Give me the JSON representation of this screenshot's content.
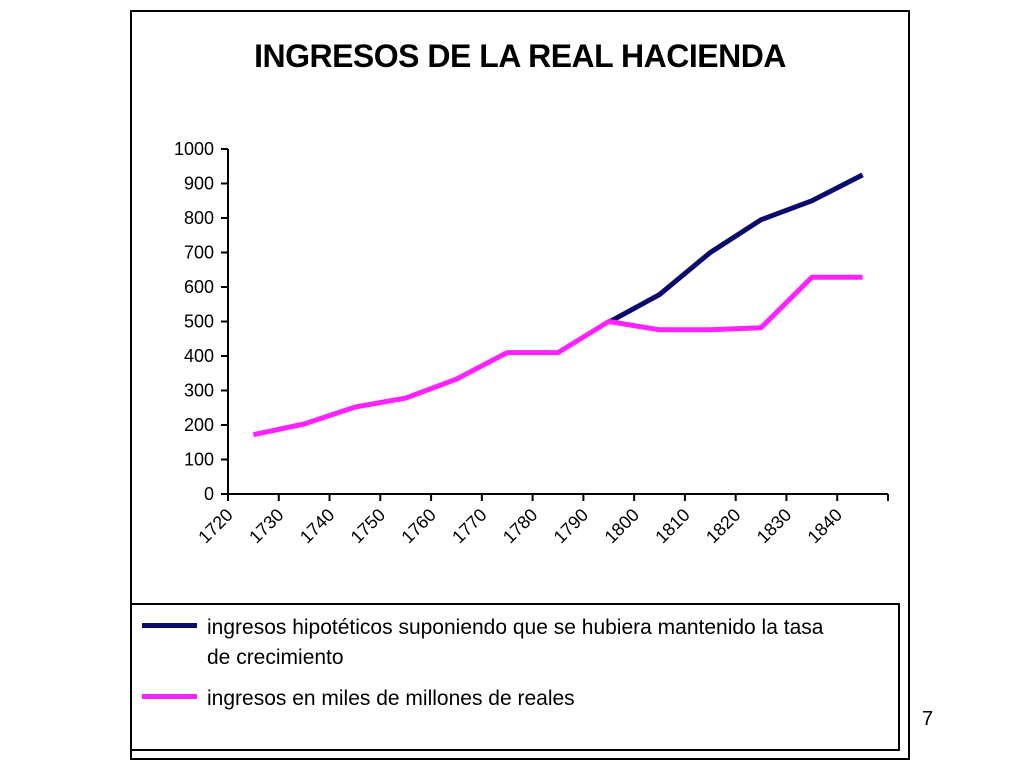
{
  "page_number": "7",
  "colors": {
    "hypothetical": "#0b0b6e",
    "actual": "#ff22ff",
    "axis": "#000000"
  },
  "chart_data": {
    "type": "line",
    "title": "INGRESOS DE LA REAL HACIENDA",
    "xlabel": "",
    "ylabel": "",
    "x_ticks": [
      "1720",
      "1730",
      "1740",
      "1750",
      "1760",
      "1770",
      "1780",
      "1790",
      "1800",
      "1810",
      "1820",
      "1830",
      "1840"
    ],
    "y_ticks": [
      "0",
      "100",
      "200",
      "300",
      "400",
      "500",
      "600",
      "700",
      "800",
      "900",
      "1000"
    ],
    "xlim": [
      1720,
      1850
    ],
    "ylim": [
      0,
      1000
    ],
    "grid": false,
    "legend_position": "bottom",
    "series": [
      {
        "name": "ingresos hipotéticos suponiendo que se hubiera mantenido la tasa de crecimiento",
        "legend_lines": [
          "ingresos hipotéticos suponiendo que se hubiera mantenido la tasa",
          "de crecimiento"
        ],
        "color_key": "hypothetical",
        "points": [
          [
            1795,
            498
          ],
          [
            1805,
            578
          ],
          [
            1815,
            700
          ],
          [
            1825,
            795
          ],
          [
            1835,
            850
          ],
          [
            1845,
            925
          ]
        ]
      },
      {
        "name": "ingresos en miles de millones de reales",
        "legend_lines": [
          "ingresos en miles de millones de reales"
        ],
        "color_key": "actual",
        "points": [
          [
            1725,
            172
          ],
          [
            1735,
            203
          ],
          [
            1745,
            252
          ],
          [
            1755,
            278
          ],
          [
            1765,
            333
          ],
          [
            1775,
            410
          ],
          [
            1785,
            410
          ],
          [
            1795,
            500
          ],
          [
            1805,
            476
          ],
          [
            1815,
            476
          ],
          [
            1825,
            482
          ],
          [
            1835,
            628
          ],
          [
            1845,
            628
          ]
        ]
      }
    ]
  }
}
